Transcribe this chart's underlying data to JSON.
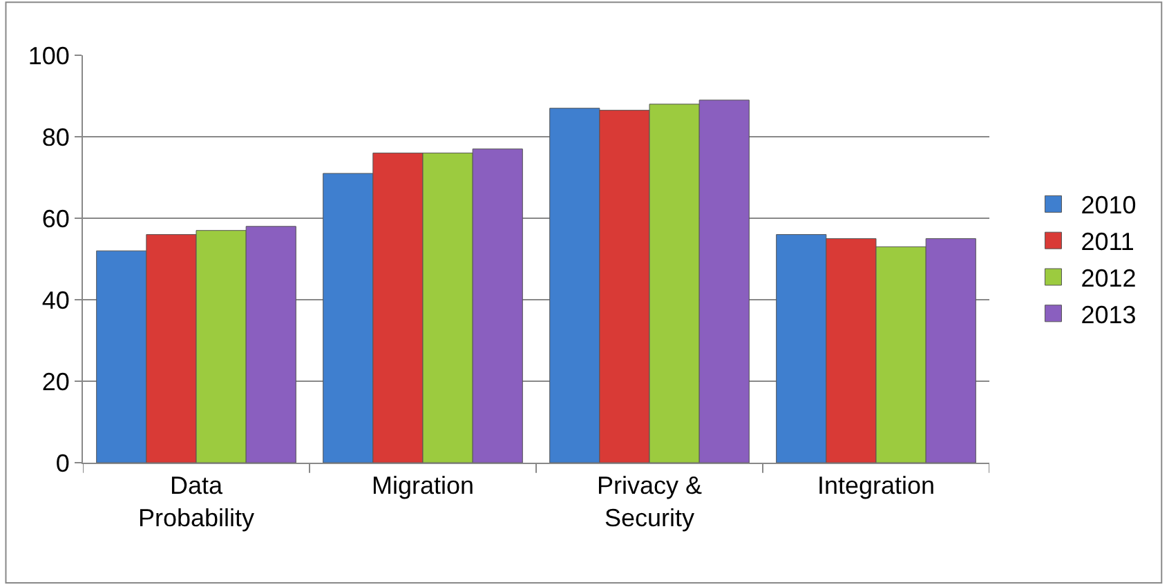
{
  "chart_data": {
    "type": "bar",
    "categories": [
      "Data Probability",
      "Migration",
      "Privacy & Security",
      "Integration"
    ],
    "series": [
      {
        "name": "2010",
        "color": "#3f7fcf",
        "values": [
          52,
          71,
          87,
          56
        ]
      },
      {
        "name": "2011",
        "color": "#d93a36",
        "values": [
          56,
          76,
          86.5,
          55
        ]
      },
      {
        "name": "2012",
        "color": "#9ccb3f",
        "values": [
          57,
          76,
          88,
          53
        ]
      },
      {
        "name": "2013",
        "color": "#8a5fbf",
        "values": [
          58,
          77,
          89,
          55
        ]
      }
    ],
    "ylim": [
      0,
      100
    ],
    "yticks": [
      0,
      20,
      40,
      60,
      80,
      100
    ],
    "grid": "y",
    "legend": "right"
  }
}
